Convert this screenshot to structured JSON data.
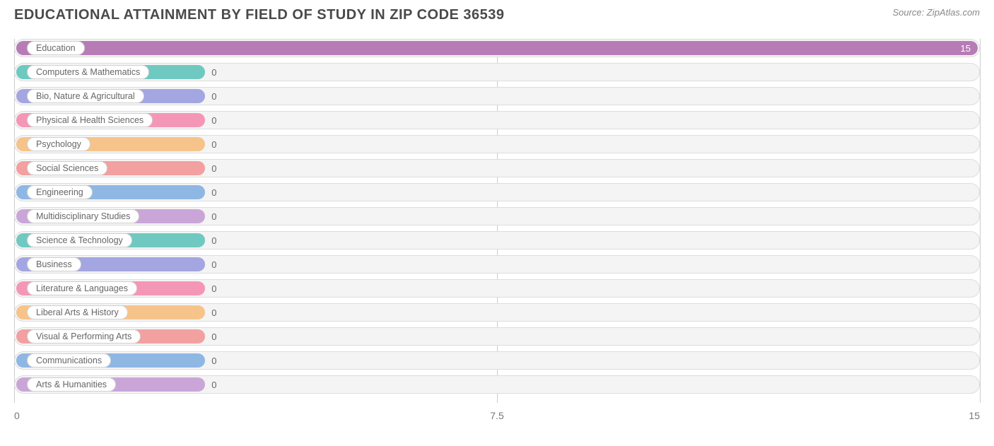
{
  "header": {
    "title": "EDUCATIONAL ATTAINMENT BY FIELD OF STUDY IN ZIP CODE 36539",
    "source": "Source: ZipAtlas.com"
  },
  "chart": {
    "type": "bar-horizontal",
    "xlim": [
      0,
      15
    ],
    "xticks": [
      {
        "value": 0,
        "label": "0"
      },
      {
        "value": 7.5,
        "label": "7.5"
      },
      {
        "value": 15,
        "label": "15"
      }
    ],
    "label_min_width_percent": 20,
    "background_color": "#ffffff",
    "track_color": "#f4f4f4",
    "track_border": "#dddddd",
    "grid_color": "#cccccc",
    "pill_bg": "#ffffff",
    "pill_border": "#d0d0d0",
    "title_fontsize": 20,
    "label_fontsize": 12.5,
    "value_fontsize": 13,
    "axis_fontsize": 14,
    "rows": [
      {
        "label": "Education",
        "value": 15,
        "color": "#b77cb6"
      },
      {
        "label": "Computers & Mathematics",
        "value": 0,
        "color": "#6fc9c1"
      },
      {
        "label": "Bio, Nature & Agricultural",
        "value": 0,
        "color": "#a3a6e0"
      },
      {
        "label": "Physical & Health Sciences",
        "value": 0,
        "color": "#f497b6"
      },
      {
        "label": "Psychology",
        "value": 0,
        "color": "#f6c48a"
      },
      {
        "label": "Social Sciences",
        "value": 0,
        "color": "#f2a0a0"
      },
      {
        "label": "Engineering",
        "value": 0,
        "color": "#8fb7e4"
      },
      {
        "label": "Multidisciplinary Studies",
        "value": 0,
        "color": "#caa6d8"
      },
      {
        "label": "Science & Technology",
        "value": 0,
        "color": "#6fc9c1"
      },
      {
        "label": "Business",
        "value": 0,
        "color": "#a3a6e0"
      },
      {
        "label": "Literature & Languages",
        "value": 0,
        "color": "#f497b6"
      },
      {
        "label": "Liberal Arts & History",
        "value": 0,
        "color": "#f6c48a"
      },
      {
        "label": "Visual & Performing Arts",
        "value": 0,
        "color": "#f2a0a0"
      },
      {
        "label": "Communications",
        "value": 0,
        "color": "#8fb7e4"
      },
      {
        "label": "Arts & Humanities",
        "value": 0,
        "color": "#caa6d8"
      }
    ]
  }
}
